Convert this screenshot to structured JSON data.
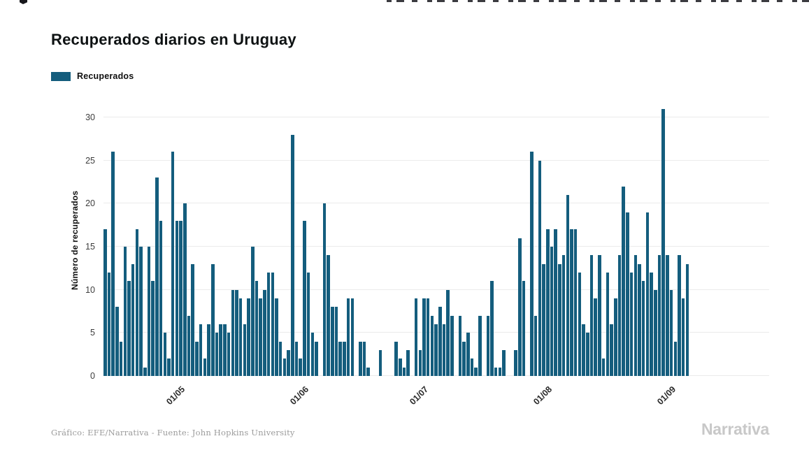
{
  "title": "Recuperados diarios en Uruguay",
  "legend": {
    "label": "Recuperados",
    "swatch_color": "#145D7D"
  },
  "footer": {
    "source": "Gráfico: EFE/Narrativa - Fuente: John Hopkins University",
    "brand": "Narrativa"
  },
  "chart_data": {
    "type": "bar",
    "title": "Recuperados diarios en Uruguay",
    "series_name": "Recuperados",
    "xlabel": "",
    "ylabel": "Número de recuperados",
    "ylim": [
      0,
      30
    ],
    "yticks": [
      0,
      5,
      10,
      15,
      20,
      25,
      30
    ],
    "grid": true,
    "legend_position": "top-left",
    "bar_color": "#145D7D",
    "x_domain_days": 167,
    "x_tick_labels": [
      {
        "label": "01/05",
        "index": 17
      },
      {
        "label": "01/06",
        "index": 48
      },
      {
        "label": "01/07",
        "index": 78
      },
      {
        "label": "01/08",
        "index": 109
      },
      {
        "label": "01/09",
        "index": 140
      }
    ],
    "values": [
      17,
      12,
      26,
      8,
      4,
      15,
      11,
      13,
      17,
      15,
      1,
      15,
      11,
      23,
      18,
      5,
      2,
      26,
      18,
      18,
      20,
      7,
      13,
      4,
      6,
      2,
      6,
      13,
      5,
      6,
      6,
      5,
      10,
      10,
      9,
      6,
      9,
      15,
      11,
      9,
      10,
      12,
      12,
      9,
      4,
      2,
      3,
      28,
      4,
      2,
      18,
      12,
      5,
      4,
      0,
      20,
      14,
      8,
      8,
      4,
      4,
      9,
      9,
      0,
      4,
      4,
      1,
      0,
      0,
      3,
      0,
      0,
      0,
      4,
      2,
      1,
      3,
      0,
      9,
      3,
      9,
      9,
      7,
      6,
      8,
      6,
      10,
      7,
      0,
      7,
      4,
      5,
      2,
      1,
      7,
      0,
      7,
      11,
      1,
      1,
      3,
      0,
      0,
      3,
      16,
      11,
      0,
      26,
      7,
      25,
      13,
      17,
      15,
      17,
      13,
      14,
      21,
      17,
      17,
      12,
      6,
      5,
      14,
      9,
      14,
      2,
      12,
      6,
      9,
      14,
      22,
      19,
      12,
      14,
      13,
      11,
      19,
      12,
      10,
      14,
      31,
      14,
      10,
      4,
      14,
      9,
      13
    ]
  }
}
